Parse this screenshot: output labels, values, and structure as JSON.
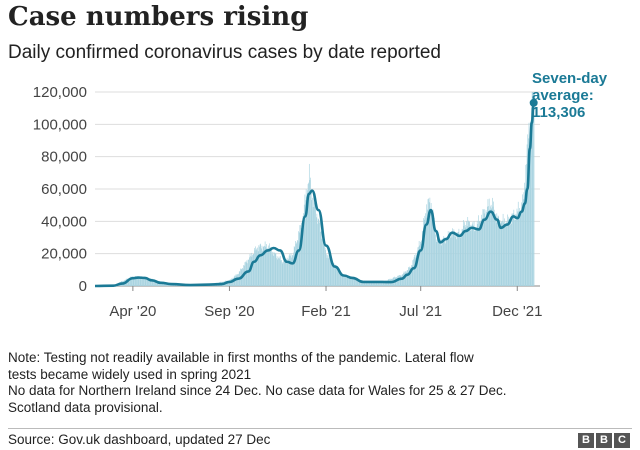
{
  "title": "Case numbers rising",
  "subtitle": "Daily confirmed coronavirus cases by date reported",
  "callout": {
    "line1": "Seven-day",
    "line2": "average:",
    "value": "113,306"
  },
  "notes": [
    "Note: Testing not readily available in first months of the pandemic. Lateral flow",
    "tests became widely used in spring 2021",
    "No data for Northern Ireland since 24 Dec. No case data for Wales for 25 & 27 Dec.",
    "Scotland data provisional."
  ],
  "source": "Source: Gov.uk dashboard, updated 27 Dec",
  "logo": [
    "B",
    "B",
    "C"
  ],
  "colors": {
    "line": "#1b7a96",
    "bars": "#a8d3e0",
    "grid": "#dddddd"
  },
  "chart_data": {
    "type": "line",
    "title": "Case numbers rising",
    "subtitle": "Daily confirmed coronavirus cases by date reported",
    "xlabel": "",
    "ylabel": "",
    "ylim": [
      0,
      120000
    ],
    "yticks": [
      "0",
      "20,000",
      "40,000",
      "60,000",
      "80,000",
      "100,000",
      "120,000"
    ],
    "ytick_values": [
      0,
      20000,
      40000,
      60000,
      80000,
      100000,
      120000
    ],
    "xticks": [
      {
        "label": "Apr '20",
        "date": "2020-04-01"
      },
      {
        "label": "Sep '20",
        "date": "2020-09-01"
      },
      {
        "label": "Feb '21",
        "date": "2021-02-01"
      },
      {
        "label": "Jul '21",
        "date": "2021-07-01"
      },
      {
        "label": "Dec '21",
        "date": "2021-12-01"
      }
    ],
    "grid": true,
    "series": [
      {
        "kind": "bars",
        "x": [
          "2020-02-01",
          "2020-03-01",
          "2020-03-15",
          "2020-04-01",
          "2020-04-10",
          "2020-04-25",
          "2020-05-10",
          "2020-06-01",
          "2020-07-01",
          "2020-08-01",
          "2020-09-01",
          "2020-09-15",
          "2020-10-01",
          "2020-10-15",
          "2020-11-01",
          "2020-11-10",
          "2020-11-25",
          "2020-12-10",
          "2020-12-25",
          "2021-01-01",
          "2021-01-05",
          "2021-01-10",
          "2021-01-20",
          "2021-02-01",
          "2021-02-15",
          "2021-03-01",
          "2021-04-01",
          "2021-05-01",
          "2021-06-01",
          "2021-06-15",
          "2021-07-01",
          "2021-07-10",
          "2021-07-17",
          "2021-07-25",
          "2021-08-05",
          "2021-08-20",
          "2021-09-01",
          "2021-09-10",
          "2021-09-25",
          "2021-10-10",
          "2021-10-20",
          "2021-11-01",
          "2021-11-15",
          "2021-12-01",
          "2021-12-10",
          "2021-12-15",
          "2021-12-20",
          "2021-12-24",
          "2021-12-27"
        ],
        "values": [
          0,
          500,
          3000,
          6000,
          5500,
          5000,
          3000,
          1500,
          800,
          1200,
          3500,
          8000,
          17000,
          24000,
          25000,
          20000,
          15000,
          20000,
          40000,
          60000,
          68000,
          55000,
          40000,
          20000,
          12000,
          6000,
          3000,
          2500,
          7000,
          12000,
          28000,
          50000,
          52000,
          30000,
          28000,
          33000,
          32000,
          40000,
          36000,
          46000,
          52000,
          40000,
          40000,
          46000,
          52000,
          80000,
          98000,
          119000,
          122000
        ]
      },
      {
        "name": "Seven-day average",
        "kind": "line",
        "x": [
          "2020-02-01",
          "2020-03-01",
          "2020-03-15",
          "2020-04-01",
          "2020-04-10",
          "2020-04-20",
          "2020-05-01",
          "2020-05-15",
          "2020-06-01",
          "2020-07-01",
          "2020-08-01",
          "2020-08-20",
          "2020-09-01",
          "2020-09-15",
          "2020-10-01",
          "2020-10-10",
          "2020-10-20",
          "2020-11-01",
          "2020-11-10",
          "2020-11-20",
          "2020-12-01",
          "2020-12-10",
          "2020-12-20",
          "2020-12-30",
          "2021-01-05",
          "2021-01-10",
          "2021-01-20",
          "2021-02-01",
          "2021-02-15",
          "2021-03-01",
          "2021-03-15",
          "2021-04-01",
          "2021-05-01",
          "2021-05-15",
          "2021-06-01",
          "2021-06-10",
          "2021-06-20",
          "2021-07-01",
          "2021-07-10",
          "2021-07-17",
          "2021-07-25",
          "2021-08-01",
          "2021-08-10",
          "2021-08-20",
          "2021-09-01",
          "2021-09-10",
          "2021-09-20",
          "2021-10-01",
          "2021-10-10",
          "2021-10-20",
          "2021-10-30",
          "2021-11-05",
          "2021-11-15",
          "2021-11-25",
          "2021-12-01",
          "2021-12-08",
          "2021-12-13",
          "2021-12-17",
          "2021-12-21",
          "2021-12-24",
          "2021-12-27"
        ],
        "values": [
          0,
          200,
          1500,
          4800,
          5200,
          5000,
          3500,
          2000,
          1200,
          600,
          900,
          1200,
          2500,
          4500,
          9000,
          15000,
          19000,
          22000,
          23500,
          22000,
          15000,
          14000,
          22000,
          43000,
          57000,
          59000,
          47000,
          25000,
          12000,
          6500,
          5000,
          2500,
          2500,
          2400,
          4500,
          7000,
          11000,
          22000,
          38000,
          47000,
          34000,
          27000,
          29000,
          33000,
          31000,
          34000,
          36000,
          35000,
          41000,
          46000,
          41000,
          36000,
          38000,
          43000,
          42000,
          46000,
          51000,
          60000,
          85000,
          101000,
          113306
        ]
      }
    ],
    "annotations": [
      "Seven-day average: 113,306"
    ]
  }
}
